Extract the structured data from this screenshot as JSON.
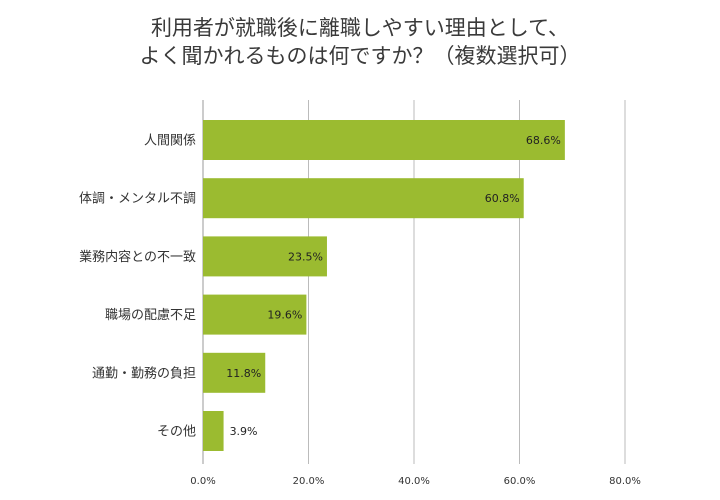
{
  "chart_data": {
    "type": "bar",
    "orientation": "horizontal",
    "title_lines": [
      "利用者が就職後に離職しやすい理由として、",
      "よく聞かれるものは何ですか？（複数選択可）"
    ],
    "categories": [
      "人間関係",
      "体調・メンタル不調",
      "業務内容との不一致",
      "職場の配慮不足",
      "通勤・勤務の負担",
      "その他"
    ],
    "values": [
      68.6,
      60.8,
      23.5,
      19.6,
      11.8,
      3.9
    ],
    "value_labels": [
      "68.6%",
      "60.8%",
      "23.5%",
      "19.6%",
      "11.8%",
      "3.9%"
    ],
    "x_ticks": [
      "0.0%",
      "20.0%",
      "40.0%",
      "60.0%",
      "80.0%"
    ],
    "x_tick_values": [
      0,
      20,
      40,
      60,
      80
    ],
    "xlim": [
      0,
      80
    ],
    "grid": true,
    "legend": "none",
    "bar_color": "#9bbb30",
    "grid_color": "#bbbbbb",
    "axis_color": "#999999"
  }
}
